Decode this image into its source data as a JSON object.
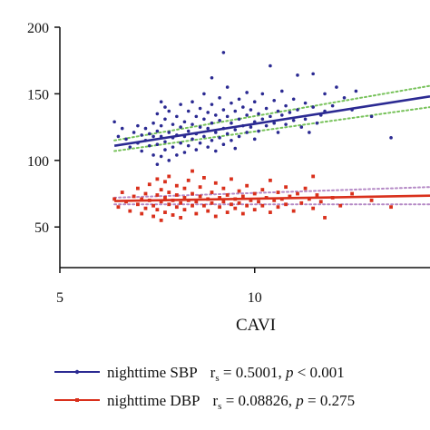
{
  "chart_data": {
    "type": "scatter",
    "title": "",
    "xlabel": "CAVI",
    "ylabel": "",
    "xlim": [
      5,
      14.5
    ],
    "ylim": [
      0,
      200
    ],
    "x_ticks": [
      "5",
      "10"
    ],
    "y_ticks": [
      "50",
      "100",
      "150",
      "200"
    ],
    "legend_position": "bottom",
    "series": [
      {
        "name": "nighttime SBP",
        "stat_label": "r",
        "stat_sub": "s",
        "stat_rest": " = 0.5001, ",
        "p_label": "p",
        "p_rest": " < 0.001",
        "color": "#2b2a92",
        "ci_color": "#77c25a",
        "fit": {
          "x": [
            6.4,
            14.5
          ],
          "y": [
            111,
            148
          ]
        },
        "ci_upper": {
          "x": [
            6.4,
            14.5
          ],
          "y": [
            115,
            156
          ]
        },
        "ci_lower": {
          "x": [
            6.4,
            14.5
          ],
          "y": [
            107,
            140
          ]
        },
        "points": [
          [
            6.4,
            129
          ],
          [
            6.5,
            118
          ],
          [
            6.6,
            124
          ],
          [
            6.7,
            116
          ],
          [
            6.8,
            110
          ],
          [
            6.9,
            121
          ],
          [
            7.0,
            126
          ],
          [
            7.0,
            113
          ],
          [
            7.1,
            119
          ],
          [
            7.1,
            107
          ],
          [
            7.2,
            124
          ],
          [
            7.2,
            115
          ],
          [
            7.3,
            120
          ],
          [
            7.3,
            111
          ],
          [
            7.4,
            118
          ],
          [
            7.4,
            104
          ],
          [
            7.4,
            128
          ],
          [
            7.5,
            122
          ],
          [
            7.5,
            97
          ],
          [
            7.5,
            135
          ],
          [
            7.5,
            112
          ],
          [
            7.6,
            144
          ],
          [
            7.6,
            118
          ],
          [
            7.6,
            103
          ],
          [
            7.6,
            126
          ],
          [
            7.7,
            140
          ],
          [
            7.7,
            114
          ],
          [
            7.7,
            108
          ],
          [
            7.7,
            131
          ],
          [
            7.8,
            121
          ],
          [
            7.8,
            100
          ],
          [
            7.8,
            137
          ],
          [
            7.9,
            117
          ],
          [
            7.9,
            127
          ],
          [
            7.9,
            110
          ],
          [
            8.0,
            133
          ],
          [
            8.0,
            119
          ],
          [
            8.0,
            104
          ],
          [
            8.1,
            125
          ],
          [
            8.1,
            142
          ],
          [
            8.1,
            113
          ],
          [
            8.2,
            129
          ],
          [
            8.2,
            118
          ],
          [
            8.2,
            106
          ],
          [
            8.3,
            137
          ],
          [
            8.3,
            122
          ],
          [
            8.3,
            111
          ],
          [
            8.4,
            144
          ],
          [
            8.4,
            127
          ],
          [
            8.4,
            116
          ],
          [
            8.5,
            133
          ],
          [
            8.5,
            120
          ],
          [
            8.5,
            108
          ],
          [
            8.6,
            139
          ],
          [
            8.6,
            125
          ],
          [
            8.6,
            113
          ],
          [
            8.7,
            150
          ],
          [
            8.7,
            131
          ],
          [
            8.7,
            118
          ],
          [
            8.8,
            136
          ],
          [
            8.8,
            124
          ],
          [
            8.8,
            110
          ],
          [
            8.9,
            162
          ],
          [
            8.9,
            142
          ],
          [
            8.9,
            128
          ],
          [
            8.9,
            115
          ],
          [
            9.0,
            134
          ],
          [
            9.0,
            121
          ],
          [
            9.0,
            107
          ],
          [
            9.1,
            147
          ],
          [
            9.1,
            130
          ],
          [
            9.1,
            117
          ],
          [
            9.2,
            181
          ],
          [
            9.2,
            138
          ],
          [
            9.2,
            124
          ],
          [
            9.2,
            112
          ],
          [
            9.3,
            155
          ],
          [
            9.3,
            133
          ],
          [
            9.3,
            120
          ],
          [
            9.4,
            143
          ],
          [
            9.4,
            128
          ],
          [
            9.4,
            115
          ],
          [
            9.5,
            137
          ],
          [
            9.5,
            123
          ],
          [
            9.5,
            109
          ],
          [
            9.6,
            146
          ],
          [
            9.6,
            131
          ],
          [
            9.6,
            118
          ],
          [
            9.7,
            140
          ],
          [
            9.7,
            126
          ],
          [
            9.8,
            151
          ],
          [
            9.8,
            134
          ],
          [
            9.8,
            121
          ],
          [
            9.9,
            138
          ],
          [
            9.9,
            125
          ],
          [
            10.0,
            144
          ],
          [
            10.0,
            129
          ],
          [
            10.0,
            116
          ],
          [
            10.1,
            135
          ],
          [
            10.1,
            122
          ],
          [
            10.2,
            150
          ],
          [
            10.2,
            131
          ],
          [
            10.3,
            139
          ],
          [
            10.3,
            126
          ],
          [
            10.4,
            171
          ],
          [
            10.4,
            133
          ],
          [
            10.5,
            145
          ],
          [
            10.5,
            128
          ],
          [
            10.6,
            137
          ],
          [
            10.6,
            121
          ],
          [
            10.7,
            152
          ],
          [
            10.7,
            134
          ],
          [
            10.8,
            141
          ],
          [
            10.8,
            127
          ],
          [
            10.9,
            136
          ],
          [
            11.0,
            146
          ],
          [
            11.0,
            130
          ],
          [
            11.1,
            164
          ],
          [
            11.1,
            138
          ],
          [
            11.2,
            125
          ],
          [
            11.3,
            143
          ],
          [
            11.3,
            131
          ],
          [
            11.4,
            121
          ],
          [
            11.5,
            165
          ],
          [
            11.5,
            140
          ],
          [
            11.6,
            128
          ],
          [
            11.7,
            134
          ],
          [
            11.8,
            150
          ],
          [
            11.8,
            137
          ],
          [
            12.0,
            141
          ],
          [
            12.1,
            155
          ],
          [
            12.3,
            147
          ],
          [
            12.5,
            138
          ],
          [
            12.6,
            152
          ],
          [
            13.0,
            133
          ],
          [
            13.5,
            117
          ]
        ]
      },
      {
        "name": "nighttime DBP",
        "stat_label": "r",
        "stat_sub": "s",
        "stat_rest": " = 0.08826, ",
        "p_label": "p",
        "p_rest": " = 0.275",
        "color": "#d9301c",
        "ci_color": "#b58ac6",
        "fit": {
          "x": [
            6.4,
            14.5
          ],
          "y": [
            69.5,
            73.5
          ]
        },
        "ci_upper": {
          "x": [
            6.4,
            14.5
          ],
          "y": [
            72,
            80
          ]
        },
        "ci_lower": {
          "x": [
            6.4,
            14.5
          ],
          "y": [
            67,
            67
          ]
        },
        "points": [
          [
            6.4,
            71
          ],
          [
            6.5,
            65
          ],
          [
            6.6,
            76
          ],
          [
            6.7,
            69
          ],
          [
            6.8,
            62
          ],
          [
            6.9,
            73
          ],
          [
            7.0,
            67
          ],
          [
            7.0,
            79
          ],
          [
            7.1,
            60
          ],
          [
            7.1,
            71
          ],
          [
            7.2,
            75
          ],
          [
            7.2,
            64
          ],
          [
            7.3,
            70
          ],
          [
            7.3,
            82
          ],
          [
            7.4,
            66
          ],
          [
            7.4,
            58
          ],
          [
            7.5,
            74
          ],
          [
            7.5,
            86
          ],
          [
            7.5,
            63
          ],
          [
            7.6,
            69
          ],
          [
            7.6,
            78
          ],
          [
            7.6,
            55
          ],
          [
            7.7,
            72
          ],
          [
            7.7,
            84
          ],
          [
            7.7,
            61
          ],
          [
            7.8,
            67
          ],
          [
            7.8,
            76
          ],
          [
            7.8,
            88
          ],
          [
            7.9,
            70
          ],
          [
            7.9,
            59
          ],
          [
            8.0,
            74
          ],
          [
            8.0,
            65
          ],
          [
            8.0,
            81
          ],
          [
            8.1,
            68
          ],
          [
            8.1,
            57
          ],
          [
            8.2,
            72
          ],
          [
            8.2,
            79
          ],
          [
            8.2,
            63
          ],
          [
            8.3,
            70
          ],
          [
            8.3,
            85
          ],
          [
            8.4,
            66
          ],
          [
            8.4,
            75
          ],
          [
            8.4,
            92
          ],
          [
            8.5,
            69
          ],
          [
            8.5,
            60
          ],
          [
            8.6,
            73
          ],
          [
            8.6,
            80
          ],
          [
            8.7,
            66
          ],
          [
            8.7,
            87
          ],
          [
            8.8,
            71
          ],
          [
            8.8,
            62
          ],
          [
            8.9,
            76
          ],
          [
            8.9,
            68
          ],
          [
            9.0,
            83
          ],
          [
            9.0,
            58
          ],
          [
            9.1,
            72
          ],
          [
            9.1,
            65
          ],
          [
            9.2,
            79
          ],
          [
            9.2,
            69
          ],
          [
            9.3,
            74
          ],
          [
            9.3,
            61
          ],
          [
            9.4,
            67
          ],
          [
            9.4,
            86
          ],
          [
            9.5,
            71
          ],
          [
            9.5,
            64
          ],
          [
            9.6,
            77
          ],
          [
            9.6,
            68
          ],
          [
            9.7,
            73
          ],
          [
            9.7,
            60
          ],
          [
            9.8,
            81
          ],
          [
            9.8,
            66
          ],
          [
            9.9,
            70
          ],
          [
            10.0,
            75
          ],
          [
            10.0,
            63
          ],
          [
            10.1,
            69
          ],
          [
            10.2,
            78
          ],
          [
            10.2,
            66
          ],
          [
            10.3,
            72
          ],
          [
            10.4,
            85
          ],
          [
            10.4,
            61
          ],
          [
            10.5,
            70
          ],
          [
            10.6,
            76
          ],
          [
            10.6,
            65
          ],
          [
            10.7,
            71
          ],
          [
            10.8,
            80
          ],
          [
            10.8,
            67
          ],
          [
            10.9,
            73
          ],
          [
            11.0,
            62
          ],
          [
            11.1,
            75
          ],
          [
            11.2,
            68
          ],
          [
            11.3,
            79
          ],
          [
            11.4,
            71
          ],
          [
            11.5,
            88
          ],
          [
            11.5,
            64
          ],
          [
            11.6,
            74
          ],
          [
            11.7,
            69
          ],
          [
            11.8,
            57
          ],
          [
            12.0,
            72
          ],
          [
            12.2,
            66
          ],
          [
            12.5,
            75
          ],
          [
            13.0,
            70
          ],
          [
            13.5,
            65
          ]
        ]
      }
    ]
  }
}
